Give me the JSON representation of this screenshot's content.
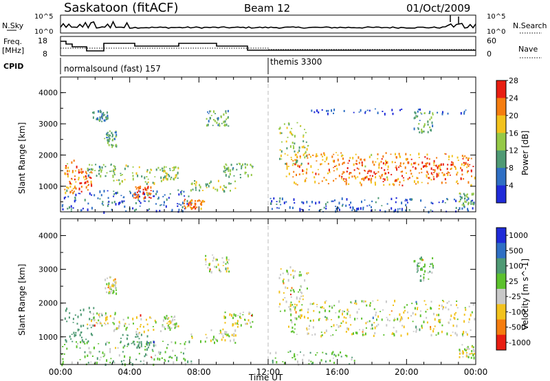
{
  "header": {
    "station": "Saskatoon (fitACF)",
    "beam": "Beam 12",
    "date": "01/Oct/2009"
  },
  "panels": {
    "nsky": {
      "left_label": "N.Sky",
      "left_ticks": [
        "10^5",
        "10^0"
      ],
      "right_label": "N.Search",
      "right_ticks": [
        "10^5",
        "10^0"
      ]
    },
    "freq": {
      "left_label_line1": "Freq.",
      "left_label_line2": "[MHz]",
      "left_ticks": [
        "18",
        "8"
      ],
      "right_label": "Nave",
      "right_ticks": [
        "60",
        "0"
      ]
    },
    "cpid": {
      "label": "CPID",
      "modes": [
        {
          "name": "normalsound (fast) 157",
          "start_hour": 0
        },
        {
          "name": "themis 3300",
          "start_hour": 12
        }
      ]
    }
  },
  "chart_data": [
    {
      "type": "heatmap",
      "title": "Power",
      "ylabel": "Slant Range [km]",
      "ylim": [
        180,
        4500
      ],
      "y_ticks": [
        "1000",
        "2000",
        "3000",
        "4000"
      ],
      "x_range_hours": [
        0,
        24
      ],
      "colorbar_label": "Power [dB]",
      "colorbar_ticks": [
        "4",
        "8",
        "12",
        "16",
        "20",
        "24",
        "28"
      ],
      "colorbar_colors": [
        "#1f2bd8",
        "#2f6fc4",
        "#4f9a74",
        "#95c947",
        "#f2c21d",
        "#f57d10",
        "#e81e12"
      ],
      "scatter_regions": [
        {
          "t0": 0.0,
          "t1": 7.6,
          "r0": 200,
          "r1": 900,
          "value": 6
        },
        {
          "t0": 0.2,
          "t1": 0.9,
          "r0": 800,
          "r1": 1900,
          "value": 22
        },
        {
          "t0": 1.0,
          "t1": 1.8,
          "r0": 850,
          "r1": 1600,
          "value": 25
        },
        {
          "t0": 1.5,
          "t1": 3.2,
          "r0": 1350,
          "r1": 1750,
          "value": 12
        },
        {
          "t0": 3.0,
          "t1": 5.8,
          "r0": 1100,
          "r1": 1700,
          "value": 14
        },
        {
          "t0": 4.2,
          "t1": 5.2,
          "r0": 650,
          "r1": 1050,
          "value": 26
        },
        {
          "t0": 5.8,
          "t1": 6.8,
          "r0": 1250,
          "r1": 1650,
          "value": 15
        },
        {
          "t0": 7.1,
          "t1": 8.3,
          "r0": 300,
          "r1": 600,
          "value": 24
        },
        {
          "t0": 7.5,
          "t1": 10.1,
          "r0": 850,
          "r1": 1250,
          "value": 14
        },
        {
          "t0": 9.4,
          "t1": 11.1,
          "r0": 1300,
          "r1": 1750,
          "value": 13
        },
        {
          "t0": 8.3,
          "t1": 9.7,
          "r0": 2950,
          "r1": 3450,
          "value": 12
        },
        {
          "t0": 1.8,
          "t1": 2.7,
          "r0": 3100,
          "r1": 3450,
          "value": 9
        },
        {
          "t0": 2.5,
          "t1": 3.2,
          "r0": 2300,
          "r1": 2800,
          "value": 11
        },
        {
          "t0": 13.0,
          "t1": 24.0,
          "r0": 1050,
          "r1": 2100,
          "value": 22
        },
        {
          "t0": 16.0,
          "t1": 24.0,
          "r0": 1250,
          "r1": 1800,
          "value": 27
        },
        {
          "t0": 12.6,
          "t1": 14.3,
          "r0": 1700,
          "r1": 3100,
          "value": 15
        },
        {
          "t0": 14.0,
          "t1": 24.0,
          "r0": 3350,
          "r1": 3500,
          "value": 4
        },
        {
          "t0": 20.4,
          "t1": 21.5,
          "r0": 2700,
          "r1": 3400,
          "value": 12
        },
        {
          "t0": 12.0,
          "t1": 24.0,
          "r0": 200,
          "r1": 650,
          "value": 5
        },
        {
          "t0": 23.0,
          "t1": 24.0,
          "r0": 400,
          "r1": 800,
          "value": 13
        }
      ]
    },
    {
      "type": "heatmap",
      "title": "Velocity",
      "ylabel": "Slant Range [km]",
      "ylim": [
        180,
        4500
      ],
      "y_ticks": [
        "1000",
        "2000",
        "3000",
        "4000"
      ],
      "x_range_hours": [
        0,
        24
      ],
      "x_ticks": [
        "00:00",
        "04:00",
        "08:00",
        "12:00",
        "16:00",
        "20:00",
        "00:00"
      ],
      "xlabel": "Time UT",
      "colorbar_label": "Velocity [m s^-1]",
      "colorbar_ticks": [
        "1000",
        "500",
        "100",
        "25",
        "-25",
        "-100",
        "-500",
        "-1000"
      ],
      "colorbar_colors": [
        "#1f2bd8",
        "#2f6fc4",
        "#4f9a74",
        "#5cc12d",
        "#c8c8c8",
        "#f2c21d",
        "#f57d10",
        "#e81e12"
      ],
      "scatter_regions": [
        {
          "t0": 0.0,
          "t1": 7.6,
          "r0": 200,
          "r1": 900,
          "value": 60
        },
        {
          "t0": 0.2,
          "t1": 1.9,
          "r0": 800,
          "r1": 1900,
          "value": 300
        },
        {
          "t0": 1.5,
          "t1": 3.2,
          "r0": 1350,
          "r1": 1750,
          "value": 0
        },
        {
          "t0": 3.0,
          "t1": 5.8,
          "r0": 1100,
          "r1": 1700,
          "value": 0
        },
        {
          "t0": 3.4,
          "t1": 5.4,
          "r0": 700,
          "r1": 1100,
          "value": 400
        },
        {
          "t0": 5.8,
          "t1": 6.8,
          "r0": 1250,
          "r1": 1650,
          "value": 0
        },
        {
          "t0": 7.5,
          "t1": 10.1,
          "r0": 850,
          "r1": 1250,
          "value": 0
        },
        {
          "t0": 9.4,
          "t1": 11.1,
          "r0": 1300,
          "r1": 1750,
          "value": 0
        },
        {
          "t0": 8.3,
          "t1": 9.7,
          "r0": 2950,
          "r1": 3450,
          "value": 0
        },
        {
          "t0": 2.5,
          "t1": 3.2,
          "r0": 2300,
          "r1": 2800,
          "value": 0
        },
        {
          "t0": 13.0,
          "t1": 24.0,
          "r0": 1050,
          "r1": 2100,
          "value": 0
        },
        {
          "t0": 12.6,
          "t1": 14.3,
          "r0": 1700,
          "r1": 3100,
          "value": 0
        },
        {
          "t0": 12.0,
          "t1": 17.0,
          "r0": 200,
          "r1": 600,
          "value": 80
        },
        {
          "t0": 20.4,
          "t1": 21.5,
          "r0": 2700,
          "r1": 3400,
          "value": 80
        },
        {
          "t0": 23.0,
          "t1": 24.0,
          "r0": 400,
          "r1": 800,
          "value": 0
        }
      ]
    }
  ]
}
